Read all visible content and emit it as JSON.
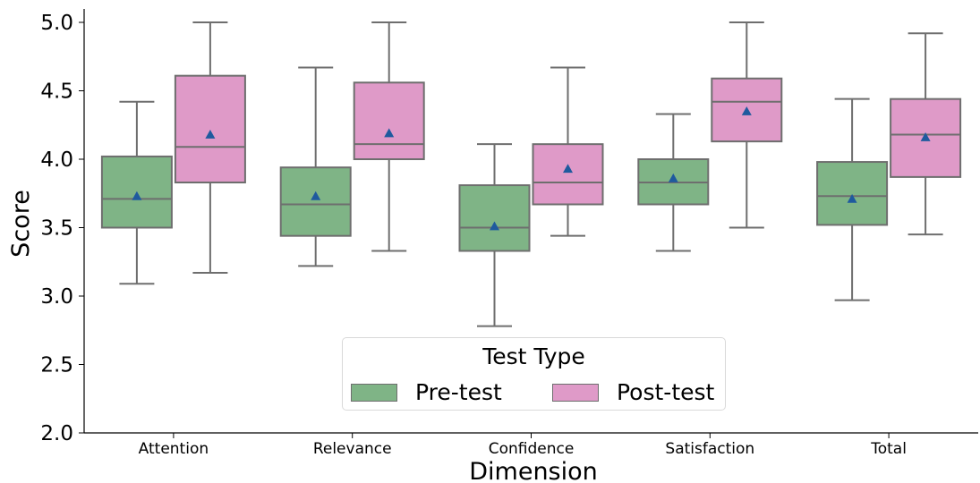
{
  "chart_data": {
    "type": "box",
    "title": "",
    "xlabel": "Dimension",
    "ylabel": "Score",
    "ylim": [
      2.0,
      5.0
    ],
    "yticks": [
      "2.0",
      "2.5",
      "3.0",
      "3.5",
      "4.0",
      "4.5",
      "5.0"
    ],
    "categories": [
      "Attention",
      "Relevance",
      "Confidence",
      "Satisfaction",
      "Total"
    ],
    "legend": {
      "title": "Test Type",
      "position": "lower center"
    },
    "series": [
      {
        "name": "Pre-test",
        "color": "#7fb486",
        "boxes": [
          {
            "whisker_low": 3.09,
            "q1": 3.5,
            "median": 3.71,
            "q3": 4.02,
            "whisker_high": 4.42,
            "mean": 3.73
          },
          {
            "whisker_low": 3.22,
            "q1": 3.44,
            "median": 3.67,
            "q3": 3.94,
            "whisker_high": 4.67,
            "mean": 3.73
          },
          {
            "whisker_low": 2.78,
            "q1": 3.33,
            "median": 3.5,
            "q3": 3.81,
            "whisker_high": 4.11,
            "mean": 3.51
          },
          {
            "whisker_low": 3.33,
            "q1": 3.67,
            "median": 3.83,
            "q3": 4.0,
            "whisker_high": 4.33,
            "mean": 3.86
          },
          {
            "whisker_low": 2.97,
            "q1": 3.52,
            "median": 3.73,
            "q3": 3.98,
            "whisker_high": 4.44,
            "mean": 3.71
          }
        ]
      },
      {
        "name": "Post-test",
        "color": "#df9ac8",
        "boxes": [
          {
            "whisker_low": 3.17,
            "q1": 3.83,
            "median": 4.09,
            "q3": 4.61,
            "whisker_high": 5.0,
            "mean": 4.18
          },
          {
            "whisker_low": 3.33,
            "q1": 4.0,
            "median": 4.11,
            "q3": 4.56,
            "whisker_high": 5.0,
            "mean": 4.19
          },
          {
            "whisker_low": 3.44,
            "q1": 3.67,
            "median": 3.83,
            "q3": 4.11,
            "whisker_high": 4.67,
            "mean": 3.93
          },
          {
            "whisker_low": 3.5,
            "q1": 4.13,
            "median": 4.42,
            "q3": 4.59,
            "whisker_high": 5.0,
            "mean": 4.35
          },
          {
            "whisker_low": 3.45,
            "q1": 3.87,
            "median": 4.18,
            "q3": 4.44,
            "whisker_high": 4.92,
            "mean": 4.16
          }
        ]
      }
    ],
    "mean_marker_color": "#1f5a9e",
    "line_color": "#6e6e6e"
  }
}
